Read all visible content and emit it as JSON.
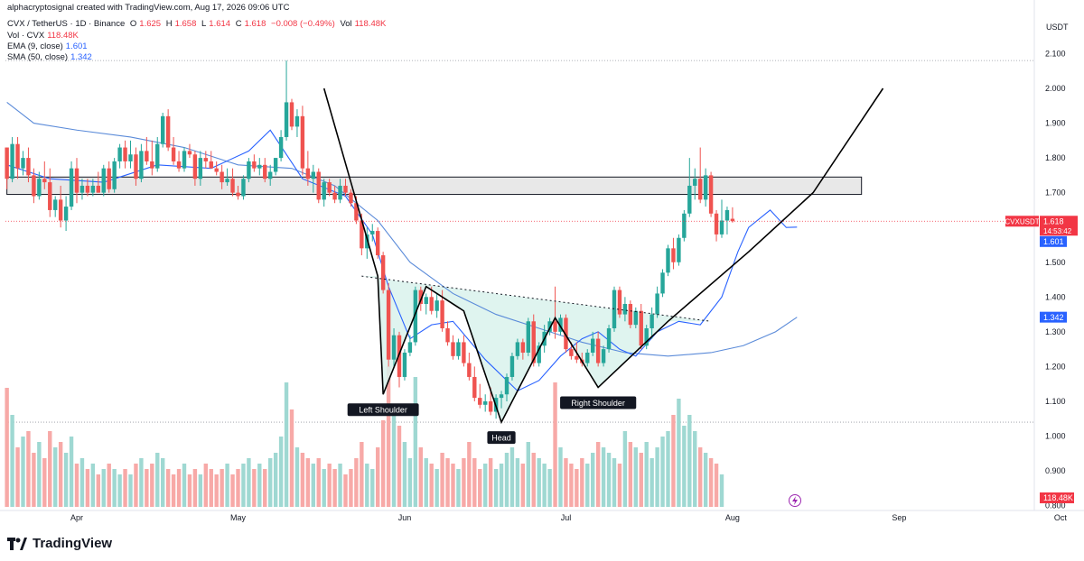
{
  "header": {
    "attribution": "alphacryptosignal created with TradingView.com, Aug 17, 2026 09:06 UTC",
    "symbol": "CVX / TetherUS · 1D · Binance",
    "ohlc": {
      "o_label": "O",
      "o": "1.625",
      "h_label": "H",
      "h": "1.658",
      "l_label": "L",
      "l": "1.614",
      "c_label": "C",
      "c": "1.618",
      "change": "−0.008 (−0.49%)",
      "vol_label": "Vol",
      "vol": "118.48K"
    },
    "vol_row": {
      "label": "Vol · CVX",
      "value": "118.48K"
    },
    "ema_row": {
      "label": "EMA (9, close)",
      "value": "1.601"
    },
    "sma_row": {
      "label": "SMA (50, close)",
      "value": "1.342"
    }
  },
  "brand": {
    "name": "TradingView"
  },
  "colors": {
    "up": "#26a69a",
    "down": "#ef5350",
    "ema": "#2962ff",
    "sma": "#5b8bd9",
    "vol_up": "#9fd8d2",
    "vol_down": "#f7a9a7",
    "pattern_fill": "#d9f2ec",
    "zone_fill": "#e8e8e8",
    "text": "#131722",
    "grid": "#f0f3fa"
  },
  "chart_data": {
    "type": "candlestick",
    "currency_label": "USDT",
    "price_axis": {
      "min": 0.8,
      "max": 2.16,
      "ticks": [
        "2.100",
        "2.000",
        "1.900",
        "1.800",
        "1.700",
        "1.600",
        "1.500",
        "1.400",
        "1.300",
        "1.200",
        "1.100",
        "1.000",
        "0.900",
        "0.800"
      ]
    },
    "time_axis": [
      {
        "label": "Apr",
        "day": 0
      },
      {
        "label": "May",
        "day": 30
      },
      {
        "label": "Jun",
        "day": 61
      },
      {
        "label": "Jul",
        "day": 91
      },
      {
        "label": "Aug",
        "day": 122
      },
      {
        "label": "Sep",
        "day": 153
      },
      {
        "label": "Oct",
        "day": 183
      }
    ],
    "start_day": -13,
    "candles": [
      [
        1.83,
        1.83,
        1.71,
        1.74
      ],
      [
        1.74,
        1.86,
        1.73,
        1.84
      ],
      [
        1.84,
        1.86,
        1.74,
        1.77
      ],
      [
        1.77,
        1.82,
        1.75,
        1.8
      ],
      [
        1.8,
        1.83,
        1.73,
        1.75
      ],
      [
        1.75,
        1.77,
        1.67,
        1.69
      ],
      [
        1.69,
        1.76,
        1.68,
        1.74
      ],
      [
        1.74,
        1.79,
        1.71,
        1.73
      ],
      [
        1.73,
        1.77,
        1.63,
        1.65
      ],
      [
        1.65,
        1.69,
        1.63,
        1.68
      ],
      [
        1.68,
        1.72,
        1.6,
        1.62
      ],
      [
        1.62,
        1.69,
        1.59,
        1.66
      ],
      [
        1.66,
        1.79,
        1.65,
        1.77
      ],
      [
        1.77,
        1.8,
        1.67,
        1.7
      ],
      [
        1.7,
        1.74,
        1.68,
        1.72
      ],
      [
        1.72,
        1.74,
        1.69,
        1.7
      ],
      [
        1.7,
        1.74,
        1.69,
        1.72
      ],
      [
        1.72,
        1.76,
        1.7,
        1.7
      ],
      [
        1.7,
        1.78,
        1.69,
        1.77
      ],
      [
        1.77,
        1.79,
        1.7,
        1.71
      ],
      [
        1.71,
        1.8,
        1.7,
        1.79
      ],
      [
        1.79,
        1.84,
        1.77,
        1.83
      ],
      [
        1.83,
        1.85,
        1.77,
        1.79
      ],
      [
        1.79,
        1.85,
        1.77,
        1.81
      ],
      [
        1.81,
        1.83,
        1.72,
        1.74
      ],
      [
        1.74,
        1.84,
        1.73,
        1.82
      ],
      [
        1.82,
        1.86,
        1.78,
        1.79
      ],
      [
        1.79,
        1.85,
        1.75,
        1.77
      ],
      [
        1.77,
        1.86,
        1.76,
        1.84
      ],
      [
        1.84,
        1.93,
        1.83,
        1.92
      ],
      [
        1.92,
        1.94,
        1.82,
        1.83
      ],
      [
        1.83,
        1.86,
        1.78,
        1.79
      ],
      [
        1.79,
        1.82,
        1.76,
        1.77
      ],
      [
        1.77,
        1.83,
        1.76,
        1.82
      ],
      [
        1.82,
        1.84,
        1.8,
        1.81
      ],
      [
        1.81,
        1.82,
        1.72,
        1.74
      ],
      [
        1.74,
        1.82,
        1.72,
        1.8
      ],
      [
        1.8,
        1.82,
        1.77,
        1.79
      ],
      [
        1.79,
        1.82,
        1.77,
        1.77
      ],
      [
        1.77,
        1.79,
        1.75,
        1.76
      ],
      [
        1.76,
        1.78,
        1.71,
        1.73
      ],
      [
        1.73,
        1.77,
        1.72,
        1.74
      ],
      [
        1.74,
        1.77,
        1.69,
        1.7
      ],
      [
        1.7,
        1.72,
        1.68,
        1.69
      ],
      [
        1.69,
        1.75,
        1.68,
        1.74
      ],
      [
        1.74,
        1.8,
        1.73,
        1.79
      ],
      [
        1.79,
        1.81,
        1.76,
        1.77
      ],
      [
        1.77,
        1.8,
        1.75,
        1.78
      ],
      [
        1.78,
        1.8,
        1.73,
        1.74
      ],
      [
        1.74,
        1.78,
        1.72,
        1.76
      ],
      [
        1.76,
        1.8,
        1.75,
        1.8
      ],
      [
        1.8,
        1.88,
        1.79,
        1.86
      ],
      [
        1.86,
        2.08,
        1.85,
        1.96
      ],
      [
        1.96,
        1.97,
        1.88,
        1.89
      ],
      [
        1.89,
        1.94,
        1.86,
        1.92
      ],
      [
        1.92,
        1.95,
        1.75,
        1.77
      ],
      [
        1.77,
        1.82,
        1.72,
        1.74
      ],
      [
        1.74,
        1.78,
        1.7,
        1.76
      ],
      [
        1.76,
        1.77,
        1.67,
        1.68
      ],
      [
        1.68,
        1.74,
        1.66,
        1.73
      ],
      [
        1.73,
        1.74,
        1.69,
        1.7
      ],
      [
        1.7,
        1.72,
        1.67,
        1.68
      ],
      [
        1.68,
        1.74,
        1.67,
        1.72
      ],
      [
        1.72,
        1.74,
        1.69,
        1.7
      ],
      [
        1.7,
        1.71,
        1.66,
        1.67
      ],
      [
        1.67,
        1.69,
        1.61,
        1.62
      ],
      [
        1.62,
        1.64,
        1.52,
        1.54
      ],
      [
        1.54,
        1.6,
        1.51,
        1.58
      ],
      [
        1.58,
        1.61,
        1.56,
        1.59
      ],
      [
        1.59,
        1.6,
        1.51,
        1.52
      ],
      [
        1.52,
        1.53,
        1.41,
        1.42
      ],
      [
        1.42,
        1.44,
        1.2,
        1.22
      ],
      [
        1.22,
        1.31,
        1.2,
        1.29
      ],
      [
        1.29,
        1.3,
        1.14,
        1.17
      ],
      [
        1.17,
        1.25,
        1.16,
        1.24
      ],
      [
        1.24,
        1.29,
        1.23,
        1.27
      ],
      [
        1.27,
        1.43,
        1.26,
        1.42
      ],
      [
        1.42,
        1.43,
        1.36,
        1.38
      ],
      [
        1.38,
        1.41,
        1.35,
        1.4
      ],
      [
        1.4,
        1.43,
        1.35,
        1.36
      ],
      [
        1.36,
        1.41,
        1.34,
        1.39
      ],
      [
        1.39,
        1.42,
        1.3,
        1.31
      ],
      [
        1.31,
        1.33,
        1.26,
        1.27
      ],
      [
        1.27,
        1.29,
        1.22,
        1.23
      ],
      [
        1.23,
        1.28,
        1.22,
        1.27
      ],
      [
        1.27,
        1.29,
        1.2,
        1.21
      ],
      [
        1.21,
        1.24,
        1.16,
        1.17
      ],
      [
        1.17,
        1.2,
        1.1,
        1.11
      ],
      [
        1.11,
        1.15,
        1.08,
        1.09
      ],
      [
        1.09,
        1.12,
        1.07,
        1.1
      ],
      [
        1.1,
        1.14,
        1.06,
        1.07
      ],
      [
        1.07,
        1.12,
        1.05,
        1.11
      ],
      [
        1.11,
        1.13,
        1.08,
        1.12
      ],
      [
        1.12,
        1.18,
        1.1,
        1.17
      ],
      [
        1.17,
        1.24,
        1.16,
        1.23
      ],
      [
        1.23,
        1.28,
        1.22,
        1.27
      ],
      [
        1.27,
        1.28,
        1.22,
        1.24
      ],
      [
        1.24,
        1.34,
        1.23,
        1.33
      ],
      [
        1.33,
        1.35,
        1.2,
        1.21
      ],
      [
        1.21,
        1.27,
        1.2,
        1.26
      ],
      [
        1.26,
        1.32,
        1.24,
        1.3
      ],
      [
        1.3,
        1.34,
        1.29,
        1.33
      ],
      [
        1.33,
        1.43,
        1.28,
        1.3
      ],
      [
        1.3,
        1.35,
        1.29,
        1.34
      ],
      [
        1.34,
        1.35,
        1.24,
        1.25
      ],
      [
        1.25,
        1.27,
        1.22,
        1.23
      ],
      [
        1.23,
        1.27,
        1.21,
        1.22
      ],
      [
        1.22,
        1.24,
        1.2,
        1.21
      ],
      [
        1.21,
        1.25,
        1.2,
        1.24
      ],
      [
        1.24,
        1.3,
        1.23,
        1.28
      ],
      [
        1.28,
        1.3,
        1.2,
        1.21
      ],
      [
        1.21,
        1.26,
        1.2,
        1.25
      ],
      [
        1.25,
        1.32,
        1.24,
        1.31
      ],
      [
        1.31,
        1.43,
        1.3,
        1.42
      ],
      [
        1.42,
        1.43,
        1.34,
        1.35
      ],
      [
        1.35,
        1.4,
        1.33,
        1.38
      ],
      [
        1.38,
        1.39,
        1.31,
        1.32
      ],
      [
        1.32,
        1.37,
        1.31,
        1.36
      ],
      [
        1.36,
        1.38,
        1.25,
        1.26
      ],
      [
        1.26,
        1.32,
        1.25,
        1.31
      ],
      [
        1.31,
        1.37,
        1.28,
        1.35
      ],
      [
        1.35,
        1.43,
        1.34,
        1.41
      ],
      [
        1.41,
        1.48,
        1.4,
        1.47
      ],
      [
        1.47,
        1.55,
        1.46,
        1.54
      ],
      [
        1.54,
        1.57,
        1.48,
        1.5
      ],
      [
        1.5,
        1.58,
        1.49,
        1.57
      ],
      [
        1.57,
        1.65,
        1.56,
        1.64
      ],
      [
        1.64,
        1.8,
        1.63,
        1.72
      ],
      [
        1.72,
        1.77,
        1.68,
        1.74
      ],
      [
        1.74,
        1.83,
        1.67,
        1.68
      ],
      [
        1.68,
        1.77,
        1.66,
        1.75
      ],
      [
        1.75,
        1.76,
        1.63,
        1.64
      ],
      [
        1.64,
        1.65,
        1.56,
        1.58
      ],
      [
        1.58,
        1.68,
        1.57,
        1.62
      ],
      [
        1.62,
        1.66,
        1.58,
        1.65
      ],
      [
        1.625,
        1.658,
        1.614,
        1.618
      ]
    ],
    "volume": [
      1.1,
      0.85,
      0.55,
      0.65,
      0.7,
      0.5,
      0.6,
      0.45,
      0.7,
      0.55,
      0.6,
      0.5,
      0.65,
      0.4,
      0.45,
      0.35,
      0.4,
      0.3,
      0.35,
      0.4,
      0.35,
      0.3,
      0.35,
      0.3,
      0.4,
      0.45,
      0.35,
      0.4,
      0.5,
      0.45,
      0.35,
      0.3,
      0.35,
      0.4,
      0.3,
      0.35,
      0.3,
      0.4,
      0.35,
      0.3,
      0.35,
      0.4,
      0.3,
      0.35,
      0.4,
      0.45,
      0.35,
      0.4,
      0.35,
      0.45,
      0.5,
      0.65,
      1.15,
      0.9,
      0.55,
      0.5,
      0.45,
      0.4,
      0.45,
      0.35,
      0.4,
      0.35,
      0.4,
      0.3,
      0.35,
      0.45,
      0.6,
      0.4,
      0.35,
      0.55,
      0.8,
      1.3,
      0.95,
      0.75,
      0.6,
      0.45,
      1.2,
      0.55,
      0.45,
      0.4,
      0.35,
      0.5,
      0.45,
      0.4,
      0.35,
      0.45,
      0.6,
      0.45,
      0.35,
      0.4,
      0.45,
      0.35,
      0.4,
      0.5,
      0.55,
      0.45,
      0.4,
      0.6,
      0.5,
      0.45,
      0.4,
      0.35,
      1.15,
      0.55,
      0.45,
      0.4,
      0.35,
      0.45,
      0.4,
      0.5,
      0.6,
      0.55,
      0.5,
      0.45,
      0.4,
      0.7,
      0.6,
      0.55,
      0.5,
      0.6,
      0.45,
      0.55,
      0.65,
      0.7,
      0.85,
      1.0,
      0.75,
      0.85,
      0.7,
      0.55,
      0.5,
      0.45,
      0.4,
      0.3
    ],
    "ema": [
      [
        -13,
        1.78
      ],
      [
        -5,
        1.74
      ],
      [
        5,
        1.73
      ],
      [
        15,
        1.78
      ],
      [
        25,
        1.77
      ],
      [
        32,
        1.82
      ],
      [
        36,
        1.88
      ],
      [
        42,
        1.74
      ],
      [
        50,
        1.69
      ],
      [
        55,
        1.58
      ],
      [
        58,
        1.43
      ],
      [
        62,
        1.28
      ],
      [
        66,
        1.32
      ],
      [
        70,
        1.33
      ],
      [
        76,
        1.22
      ],
      [
        82,
        1.13
      ],
      [
        86,
        1.16
      ],
      [
        90,
        1.23
      ],
      [
        94,
        1.28
      ],
      [
        97,
        1.3
      ],
      [
        101,
        1.25
      ],
      [
        104,
        1.23
      ],
      [
        108,
        1.3
      ],
      [
        112,
        1.33
      ],
      [
        116,
        1.32
      ],
      [
        120,
        1.4
      ],
      [
        123,
        1.53
      ],
      [
        125,
        1.6
      ],
      [
        129,
        1.65
      ],
      [
        132,
        1.6
      ],
      [
        134,
        1.601
      ]
    ],
    "sma": [
      [
        -13,
        1.96
      ],
      [
        -8,
        1.9
      ],
      [
        0,
        1.88
      ],
      [
        10,
        1.86
      ],
      [
        20,
        1.83
      ],
      [
        30,
        1.78
      ],
      [
        40,
        1.77
      ],
      [
        48,
        1.72
      ],
      [
        56,
        1.62
      ],
      [
        62,
        1.5
      ],
      [
        70,
        1.41
      ],
      [
        78,
        1.35
      ],
      [
        86,
        1.31
      ],
      [
        94,
        1.27
      ],
      [
        102,
        1.24
      ],
      [
        110,
        1.23
      ],
      [
        118,
        1.24
      ],
      [
        124,
        1.26
      ],
      [
        130,
        1.3
      ],
      [
        134,
        1.342
      ]
    ],
    "resistance_zone": {
      "top": 1.745,
      "bottom": 1.695,
      "from_day": -13,
      "to_day": 146
    },
    "neckline": [
      [
        53,
        1.46
      ],
      [
        118,
        1.33
      ]
    ],
    "pattern_path": [
      [
        46,
        2.0
      ],
      [
        56,
        1.46
      ],
      [
        57,
        1.12
      ],
      [
        65,
        1.43
      ],
      [
        72,
        1.36
      ],
      [
        79,
        1.04
      ],
      [
        89,
        1.34
      ],
      [
        97,
        1.14
      ],
      [
        110,
        1.33
      ],
      [
        125,
        1.53
      ],
      [
        137,
        1.7
      ],
      [
        150,
        2.0
      ]
    ],
    "annotations": [
      {
        "label": "Left Shoulder",
        "day": 57,
        "price": 1.12,
        "pos": "below"
      },
      {
        "label": "Head",
        "day": 79,
        "price": 1.04,
        "pos": "below"
      },
      {
        "label": "Right Shoulder",
        "day": 97,
        "price": 1.14,
        "pos": "below"
      }
    ],
    "labels": {
      "symbol": "CVXUSDT",
      "last_price": "1.618",
      "countdown": "14:53:42",
      "ema_value": "1.601",
      "sma_value": "1.342",
      "volume_value": "118.48K"
    },
    "dotted_levels": [
      2.08,
      1.04
    ]
  }
}
